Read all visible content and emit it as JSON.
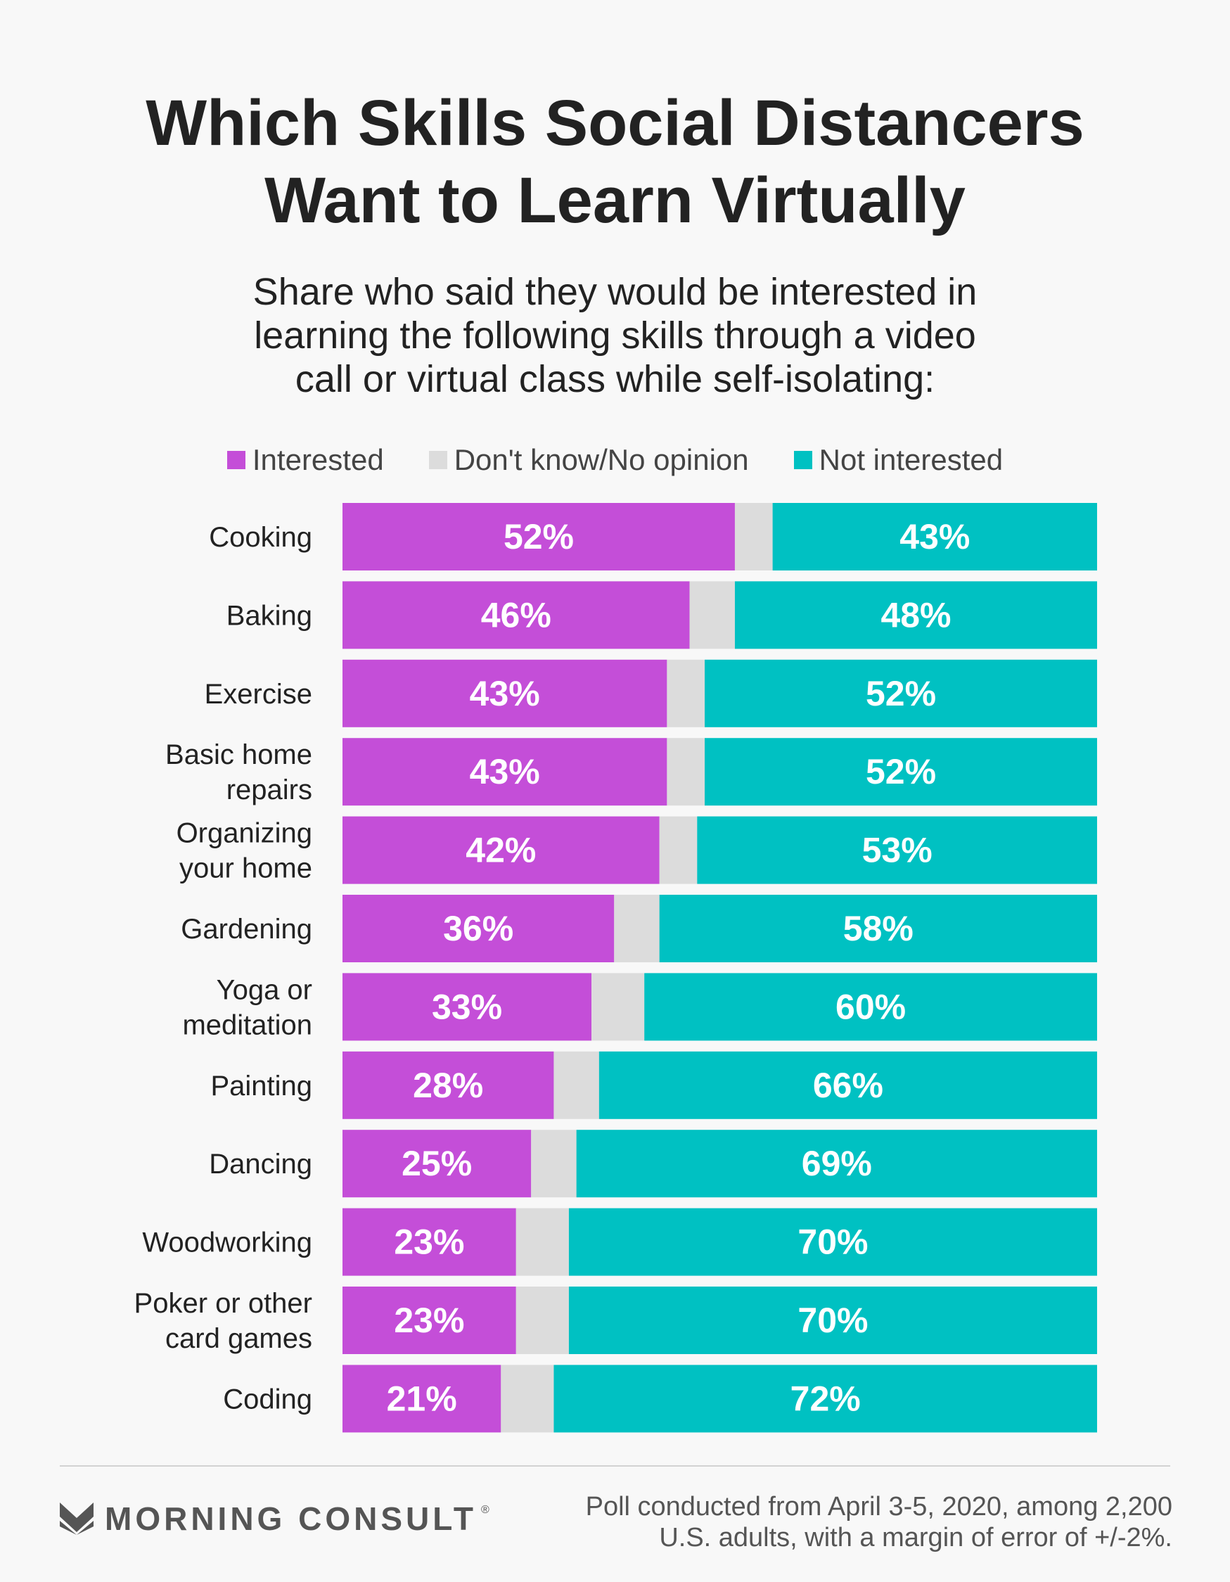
{
  "title_lines": [
    "Which Skills Social Distancers",
    "Want to Learn Virtually"
  ],
  "subtitle_lines": [
    "Share who said they would be interested in",
    "learning the following skills through a video",
    "call or virtual class while self-isolating:"
  ],
  "legend": [
    {
      "label": "Interested",
      "color": "#c44ed8"
    },
    {
      "label": "Don't know/No opinion",
      "color": "#dcdcdc"
    },
    {
      "label": "Not interested",
      "color": "#00c1c2"
    }
  ],
  "chart_data": {
    "type": "bar",
    "orientation": "horizontal",
    "stacked": true,
    "normalized_to": 100,
    "categories": [
      [
        "Cooking"
      ],
      [
        "Baking"
      ],
      [
        "Exercise"
      ],
      [
        "Basic home",
        "repairs"
      ],
      [
        "Organizing",
        "your home"
      ],
      [
        "Gardening"
      ],
      [
        "Yoga or",
        "meditation"
      ],
      [
        "Painting"
      ],
      [
        "Dancing"
      ],
      [
        "Woodworking"
      ],
      [
        "Poker or other",
        "card games"
      ],
      [
        "Coding"
      ]
    ],
    "series": [
      {
        "name": "Interested",
        "color": "#c44ed8",
        "values": [
          52,
          46,
          43,
          43,
          42,
          36,
          33,
          28,
          25,
          23,
          23,
          21
        ],
        "labels": [
          "52%",
          "46%",
          "43%",
          "43%",
          "42%",
          "36%",
          "33%",
          "28%",
          "25%",
          "23%",
          "23%",
          "21%"
        ]
      },
      {
        "name": "Don't know/No opinion",
        "color": "#dcdcdc",
        "values": [
          5,
          6,
          5,
          5,
          5,
          6,
          7,
          6,
          6,
          7,
          7,
          7
        ]
      },
      {
        "name": "Not interested",
        "color": "#00c1c2",
        "values": [
          43,
          48,
          52,
          52,
          53,
          58,
          60,
          66,
          69,
          70,
          70,
          72
        ],
        "labels": [
          "43%",
          "48%",
          "52%",
          "52%",
          "53%",
          "58%",
          "60%",
          "66%",
          "69%",
          "70%",
          "70%",
          "72%"
        ]
      }
    ]
  },
  "footer": {
    "logo_text": "MORNING CONSULT",
    "logo_mark": "®",
    "note_lines": [
      "Poll conducted from April 3-5, 2020, among 2,200",
      "U.S. adults, with a margin of error of +/-2%."
    ]
  }
}
